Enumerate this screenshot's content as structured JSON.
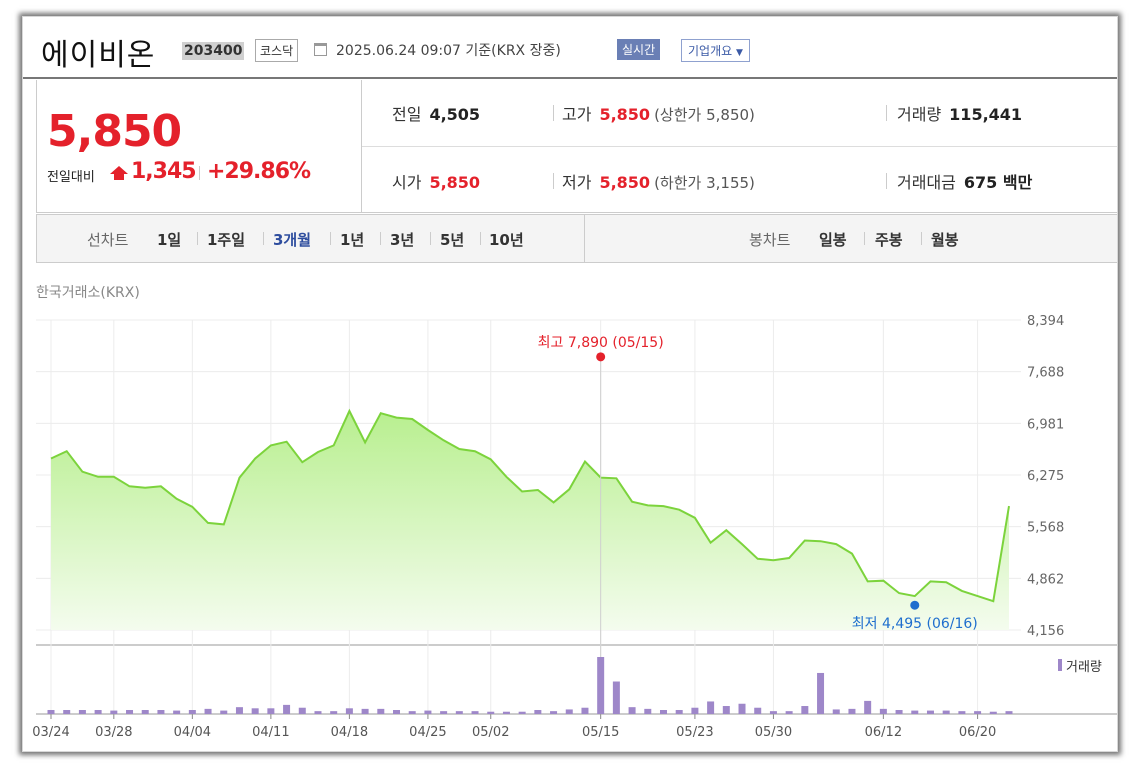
{
  "header": {
    "name": "에이비온",
    "code": "203400",
    "market": "코스닥",
    "datetime": "2025.06.24 09:07",
    "basis": "기준(KRX 장중)",
    "realtime_label": "실시간",
    "company_button": "기업개요"
  },
  "price": {
    "current": "5,850",
    "change_label": "전일대비",
    "change": "1,345",
    "change_pct": "+29.86%"
  },
  "stats": {
    "prev_label": "전일",
    "prev": "4,505",
    "open_label": "시가",
    "open": "5,850",
    "high_label": "고가",
    "high": "5,850",
    "upper_limit": "(상한가 5,850)",
    "low_label": "저가",
    "low": "5,850",
    "lower_limit": "(하한가 3,155)",
    "volume_label": "거래량",
    "volume": "115,441",
    "amount_label": "거래대금",
    "amount": "675 백만"
  },
  "tabs": {
    "line_label": "선차트",
    "line_periods": [
      "1일",
      "1주일",
      "3개월",
      "1년",
      "3년",
      "5년",
      "10년"
    ],
    "active": "3개월",
    "candle_label": "봉차트",
    "candle_periods": [
      "일봉",
      "주봉",
      "월봉"
    ]
  },
  "exchange": "한국거래소(KRX)",
  "colors": {
    "up": "#e4212b",
    "line": "#7cd33c",
    "area_top": "#b8ef8f",
    "area_bottom": "#f4fcee",
    "volume_bar": "#9e87c9",
    "max_marker": "#e4212b",
    "min_marker": "#1f6fce",
    "active_tab": "#2e4d9e"
  },
  "chart_data": {
    "type": "area",
    "y_ticks": [
      "8,394",
      "7,688",
      "6,981",
      "6,275",
      "5,568",
      "4,862",
      "4,156"
    ],
    "ylim": [
      4156,
      8394
    ],
    "x_tick_labels": [
      "03/24",
      "03/28",
      "04/04",
      "04/11",
      "04/18",
      "04/25",
      "05/02",
      "05/15",
      "05/23",
      "05/30",
      "06/12",
      "06/20"
    ],
    "dates": [
      "03/24",
      "03/25",
      "03/26",
      "03/27",
      "03/28",
      "03/31",
      "04/01",
      "04/02",
      "04/03",
      "04/04",
      "04/07",
      "04/08",
      "04/09",
      "04/10",
      "04/11",
      "04/14",
      "04/15",
      "04/16",
      "04/17",
      "04/18",
      "04/21",
      "04/22",
      "04/23",
      "04/24",
      "04/25",
      "04/28",
      "04/29",
      "04/30",
      "05/02",
      "05/07",
      "05/08",
      "05/09",
      "05/12",
      "05/13",
      "05/14",
      "05/15",
      "05/16",
      "05/19",
      "05/20",
      "05/21",
      "05/22",
      "05/23",
      "05/26",
      "05/27",
      "05/28",
      "05/29",
      "05/30",
      "06/02",
      "06/04",
      "06/05",
      "06/09",
      "06/10",
      "06/11",
      "06/12",
      "06/13",
      "06/16",
      "06/17",
      "06/18",
      "06/19",
      "06/20",
      "06/23",
      "06/24"
    ],
    "close": [
      6500,
      6600,
      6320,
      6250,
      6250,
      6120,
      6100,
      6120,
      5950,
      5840,
      5620,
      5600,
      6240,
      6500,
      6680,
      6730,
      6450,
      6590,
      6680,
      7150,
      6720,
      7120,
      7060,
      7040,
      6890,
      6750,
      6630,
      6600,
      6490,
      6250,
      6050,
      6070,
      5900,
      6080,
      6460,
      6240,
      6230,
      5910,
      5860,
      5850,
      5800,
      5690,
      5350,
      5520,
      5330,
      5130,
      5110,
      5140,
      5380,
      5370,
      5330,
      5200,
      4820,
      4830,
      4660,
      4620,
      4820,
      4810,
      4690,
      4620,
      4550,
      5850
    ],
    "volume": [
      0.07,
      0.07,
      0.07,
      0.07,
      0.06,
      0.07,
      0.07,
      0.07,
      0.06,
      0.07,
      0.09,
      0.06,
      0.12,
      0.1,
      0.1,
      0.16,
      0.11,
      0.05,
      0.05,
      0.1,
      0.09,
      0.09,
      0.07,
      0.05,
      0.06,
      0.05,
      0.05,
      0.05,
      0.04,
      0.04,
      0.04,
      0.07,
      0.05,
      0.08,
      0.11,
      1.0,
      0.57,
      0.12,
      0.09,
      0.07,
      0.07,
      0.11,
      0.22,
      0.14,
      0.18,
      0.11,
      0.05,
      0.05,
      0.14,
      0.72,
      0.08,
      0.09,
      0.23,
      0.09,
      0.07,
      0.06,
      0.06,
      0.06,
      0.05,
      0.05,
      0.04,
      0.05
    ],
    "volume_unit": "relative",
    "max_annotation": "최고 7,890 (05/15)",
    "max_index": 35,
    "max_value": 7890,
    "min_annotation": "최저 4,495 (06/16)",
    "min_index": 55,
    "min_value": 4495,
    "volume_legend": "거래량",
    "grid": true
  }
}
